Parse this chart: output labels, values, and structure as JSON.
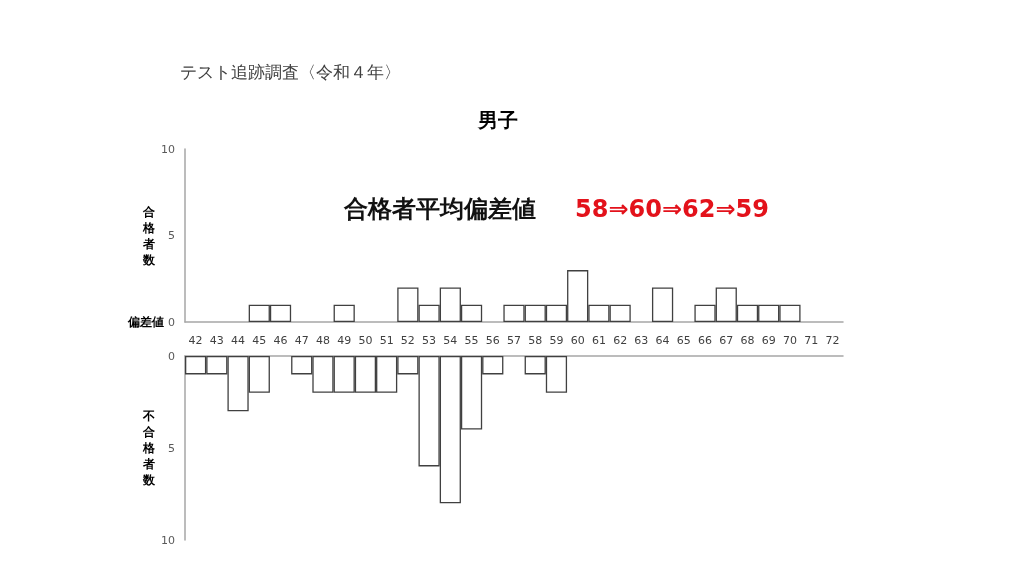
{
  "chart_data": [
    {
      "type": "bar",
      "title": "テスト追跡調査〈令和４年〉",
      "subtitle": "男子",
      "xlabel": "偏差値",
      "ylabel": "合格者数",
      "annotations": [
        "合格者平均偏差値",
        "58⇒60⇒62⇒59"
      ],
      "categories": [
        "42",
        "43",
        "44",
        "45",
        "46",
        "47",
        "48",
        "49",
        "50",
        "51",
        "52",
        "53",
        "54",
        "55",
        "56",
        "57",
        "58",
        "59",
        "60",
        "61",
        "62",
        "63",
        "64",
        "65",
        "66",
        "67",
        "68",
        "69",
        "70",
        "71",
        "72"
      ],
      "values": [
        0,
        0,
        0,
        1,
        1,
        0,
        0,
        1,
        0,
        0,
        2,
        1,
        2,
        1,
        0,
        1,
        1,
        1,
        3,
        1,
        1,
        0,
        2,
        0,
        1,
        2,
        1,
        1,
        1,
        0,
        0
      ],
      "color": "#ffffff",
      "ylim": [
        0,
        10
      ],
      "yticks": [
        0,
        5,
        10
      ]
    },
    {
      "type": "bar",
      "ylabel": "不合格者数",
      "tick_labels": "y",
      "categories": [
        "42",
        "43",
        "44",
        "45",
        "46",
        "47",
        "48",
        "49",
        "50",
        "51",
        "52",
        "53",
        "54",
        "55",
        "56",
        "57",
        "58",
        "59",
        "60",
        "61",
        "62",
        "63",
        "64",
        "65",
        "66",
        "67",
        "68",
        "69",
        "70",
        "71",
        "72"
      ],
      "values": [
        1,
        1,
        3,
        2,
        0,
        1,
        2,
        2,
        2,
        2,
        1,
        6,
        8,
        4,
        1,
        0,
        1,
        2,
        0,
        0,
        0,
        0,
        0,
        0,
        0,
        0,
        0,
        0,
        0,
        0,
        0
      ],
      "color": "#ffffff",
      "ylim": [
        10,
        0
      ],
      "yticks": [
        0,
        5,
        10
      ]
    }
  ]
}
